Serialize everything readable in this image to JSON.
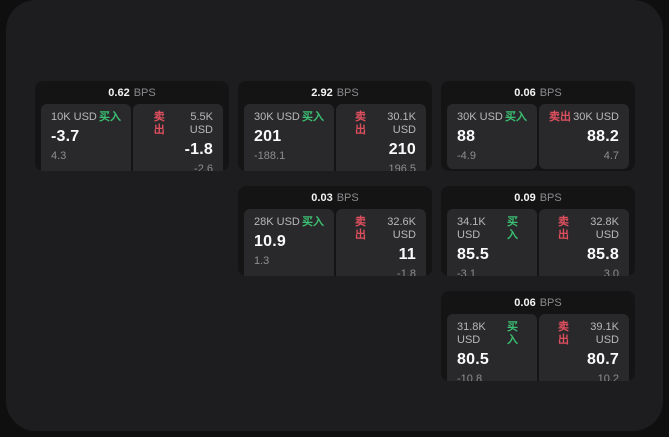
{
  "labels": {
    "bps_unit": "BPS",
    "buy": "买入",
    "sell": "卖出"
  },
  "colors": {
    "page_background": "#0f0f10",
    "window_background": "#1d1d1f",
    "card_background": "#141415",
    "panel_background": "#29292b",
    "buy_green": "#3bbf72",
    "sell_red": "#df4f5e",
    "primary_text": "#fafafa",
    "secondary_text": "#b8b8ba",
    "muted_text": "#8e8e91"
  },
  "cards": [
    {
      "bps": "0.62",
      "buy": {
        "amount": "10K USD",
        "price": "-3.7",
        "delta": "4.3"
      },
      "sell": {
        "amount": "5.5K USD",
        "price": "-1.8",
        "delta": "-2.6"
      }
    },
    {
      "bps": "2.92",
      "buy": {
        "amount": "30K USD",
        "price": "201",
        "delta": "-188.1"
      },
      "sell": {
        "amount": "30.1K USD",
        "price": "210",
        "delta": "196.5"
      }
    },
    {
      "bps": "0.06",
      "buy": {
        "amount": "30K USD",
        "price": "88",
        "delta": "-4.9"
      },
      "sell": {
        "amount": "30K USD",
        "price": "88.2",
        "delta": "4.7"
      }
    },
    {
      "bps": "0.03",
      "buy": {
        "amount": "28K USD",
        "price": "10.9",
        "delta": "1.3"
      },
      "sell": {
        "amount": "32.6K USD",
        "price": "11",
        "delta": "-1.8"
      }
    },
    {
      "bps": "0.09",
      "buy": {
        "amount": "34.1K USD",
        "price": "85.5",
        "delta": "-3.1"
      },
      "sell": {
        "amount": "32.8K USD",
        "price": "85.8",
        "delta": "3.0"
      }
    },
    {
      "bps": "0.06",
      "buy": {
        "amount": "31.8K USD",
        "price": "80.5",
        "delta": "-10.8"
      },
      "sell": {
        "amount": "39.1K USD",
        "price": "80.7",
        "delta": "10.2"
      }
    }
  ]
}
